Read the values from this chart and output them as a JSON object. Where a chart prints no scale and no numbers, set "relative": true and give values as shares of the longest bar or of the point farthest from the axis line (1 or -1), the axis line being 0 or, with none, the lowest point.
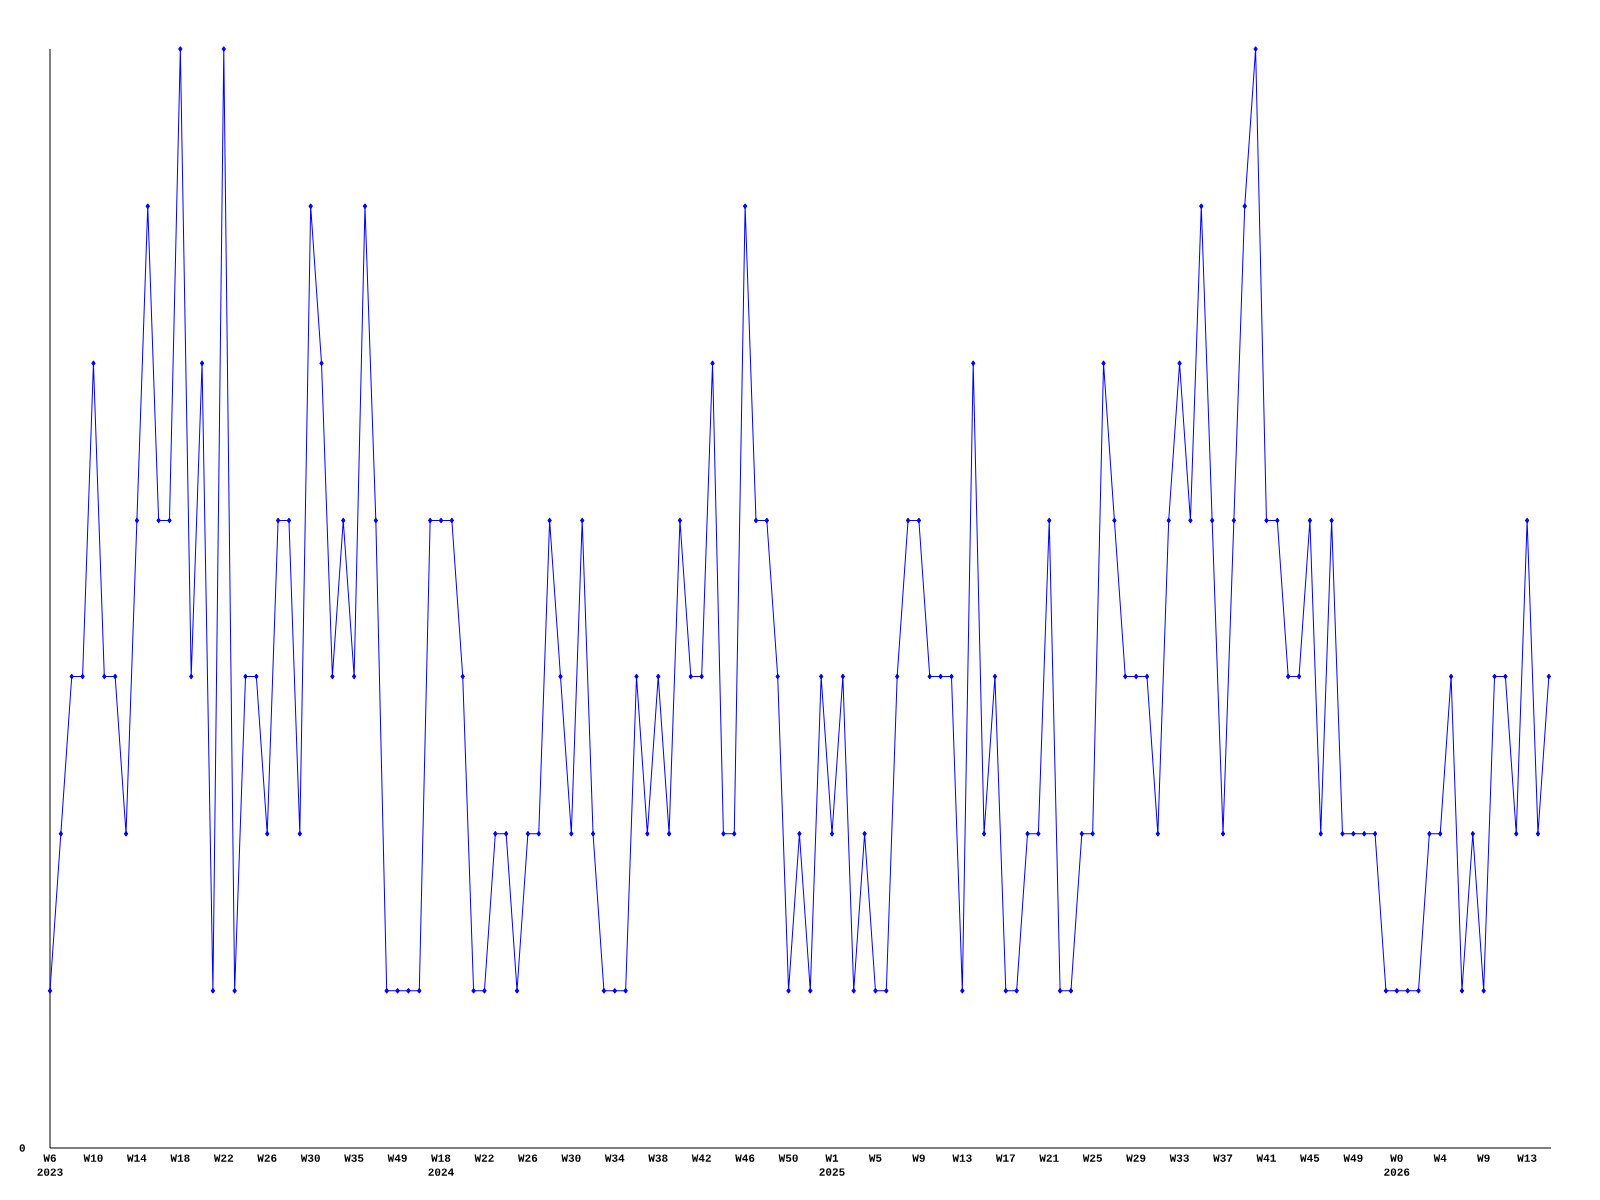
{
  "chart_data": {
    "type": "line",
    "relative": true,
    "color": "#0000ff",
    "marker": "diamond",
    "annotations": [
      "0"
    ],
    "categories": [
      "W6 2023",
      null,
      null,
      null,
      "W10",
      null,
      null,
      null,
      "W14",
      null,
      null,
      null,
      "W18",
      null,
      null,
      null,
      "W22",
      null,
      null,
      null,
      "W26",
      null,
      null,
      null,
      "W30",
      null,
      null,
      null,
      "W35",
      null,
      null,
      null,
      "W49",
      null,
      null,
      null,
      "W18 2024",
      null,
      null,
      null,
      "W22",
      null,
      null,
      null,
      "W26",
      null,
      null,
      null,
      "W30",
      null,
      null,
      null,
      "W34",
      null,
      null,
      null,
      "W38",
      null,
      null,
      null,
      "W42",
      null,
      null,
      null,
      "W46",
      null,
      null,
      null,
      "W50",
      null,
      null,
      null,
      "W1 2025",
      null,
      null,
      null,
      "W5",
      null,
      null,
      null,
      "W9",
      null,
      null,
      null,
      "W13",
      null,
      null,
      null,
      "W17",
      null,
      null,
      null,
      "W21",
      null,
      null,
      null,
      "W25",
      null,
      null,
      null,
      "W29",
      null,
      null,
      null,
      "W33",
      null,
      null,
      null,
      "W37",
      null,
      null,
      null,
      "W41",
      null,
      null,
      null,
      "W45",
      null,
      null,
      null,
      "W49",
      null,
      null,
      null,
      "W0 2026",
      null,
      null,
      null,
      "W4",
      null,
      null,
      null,
      "W9",
      null,
      null,
      null,
      "W13",
      null,
      null
    ],
    "values": [
      0.143,
      0.286,
      0.429,
      0.429,
      0.714,
      0.429,
      0.429,
      0.286,
      0.571,
      0.857,
      0.571,
      0.571,
      1,
      0.429,
      0.714,
      0.143,
      1,
      0.143,
      0.429,
      0.429,
      0.286,
      0.571,
      0.571,
      0.286,
      0.857,
      0.714,
      0.429,
      0.571,
      0.429,
      0.857,
      0.571,
      0.143,
      0.143,
      0.143,
      0.143,
      0.571,
      0.571,
      0.571,
      0.429,
      0.143,
      0.143,
      0.286,
      0.286,
      0.143,
      0.286,
      0.286,
      0.571,
      0.429,
      0.286,
      0.571,
      0.286,
      0.143,
      0.143,
      0.143,
      0.429,
      0.286,
      0.429,
      0.286,
      0.571,
      0.429,
      0.429,
      0.714,
      0.286,
      0.286,
      0.857,
      0.571,
      0.571,
      0.429,
      0.143,
      0.286,
      0.143,
      0.429,
      0.286,
      0.429,
      0.143,
      0.286,
      0.143,
      0.143,
      0.429,
      0.571,
      0.571,
      0.429,
      0.429,
      0.429,
      0.143,
      0.714,
      0.286,
      0.429,
      0.143,
      0.143,
      0.286,
      0.286,
      0.571,
      0.143,
      0.143,
      0.286,
      0.286,
      0.714,
      0.571,
      0.429,
      0.429,
      0.429,
      0.286,
      0.571,
      0.714,
      0.571,
      0.857,
      0.571,
      0.286,
      0.571,
      0.857,
      1,
      0.571,
      0.571,
      0.429,
      0.429,
      0.571,
      0.286,
      0.571,
      0.286,
      0.286,
      0.286,
      0.286,
      0.143,
      0.143,
      0.143,
      0.143,
      0.286,
      0.286,
      0.429,
      0.143,
      0.286,
      0.143,
      0.429,
      0.429,
      0.286,
      0.571,
      0.286,
      0.429
    ]
  }
}
